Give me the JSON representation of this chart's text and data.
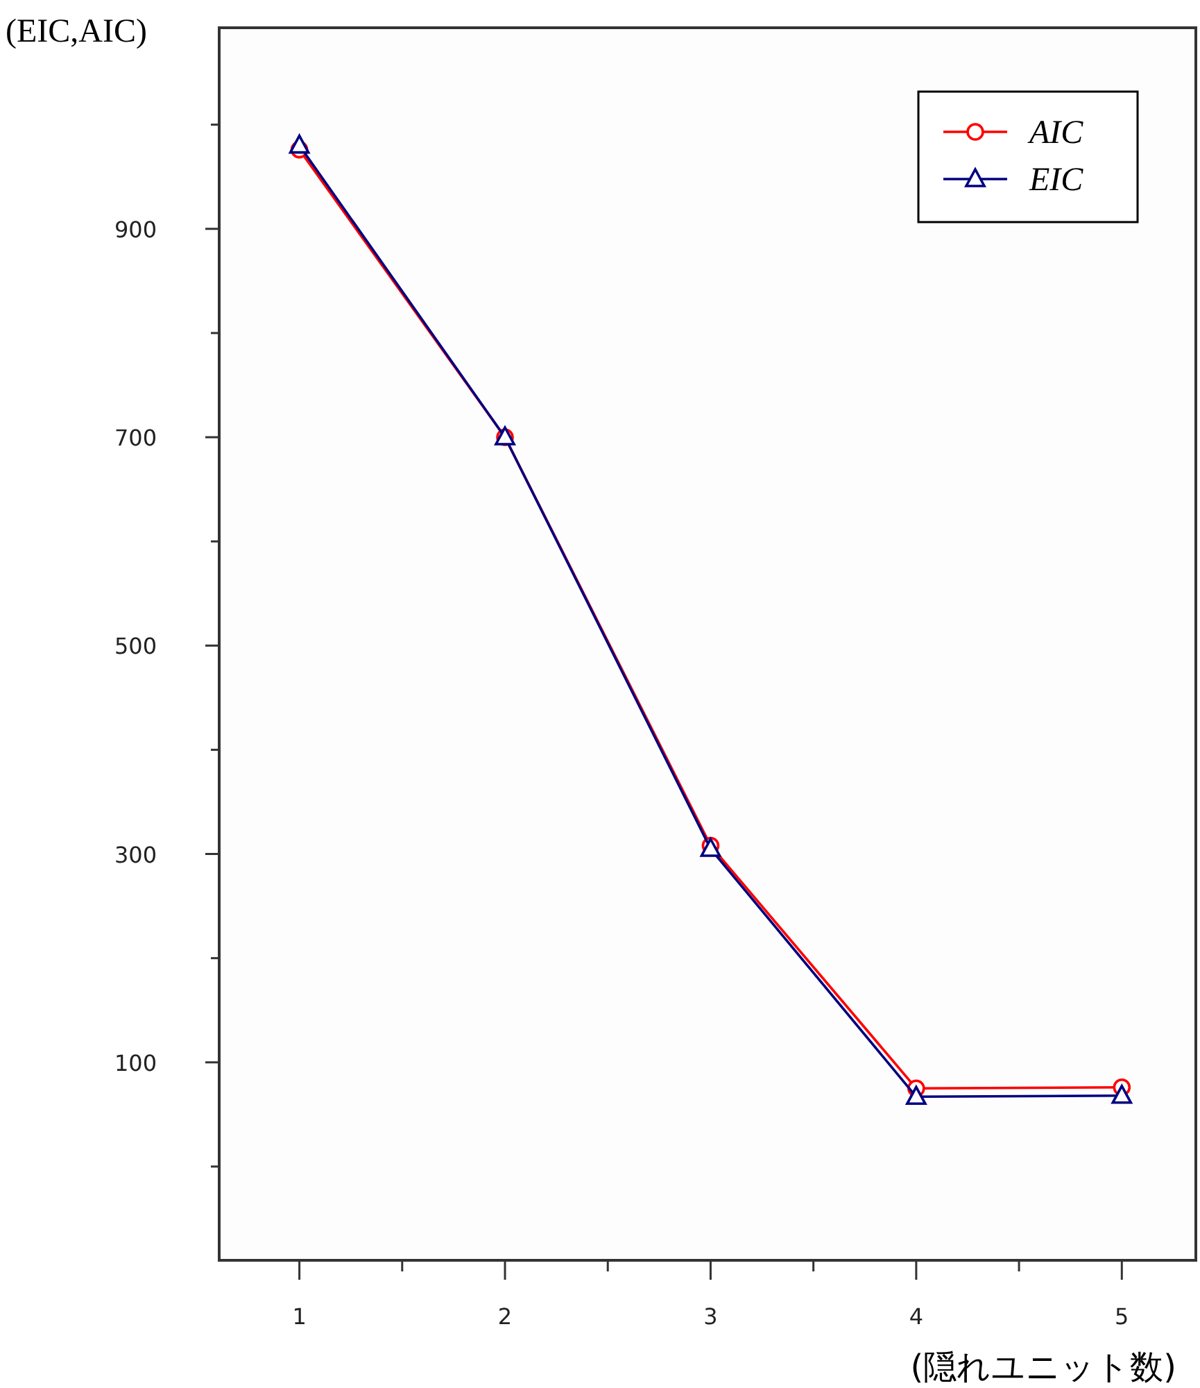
{
  "chart_data": {
    "type": "line",
    "xlabel": "(隠れユニット数)",
    "ylabel": "(EIC,AIC)",
    "x": [
      1,
      2,
      3,
      4,
      5
    ],
    "series": [
      {
        "name": "AIC",
        "color": "#ff0000",
        "marker": "circle",
        "values": [
          976,
          700,
          308,
          75,
          76
        ]
      },
      {
        "name": "EIC",
        "color": "#000080",
        "marker": "triangle",
        "values": [
          980,
          700,
          305,
          67,
          68
        ]
      }
    ],
    "xlim": [
      0.61,
      5.36
    ],
    "xticks": [
      1,
      {
        "value": 1.5,
        "label": null
      },
      2,
      {
        "value": 2.5,
        "label": null
      },
      3,
      {
        "value": 3.5,
        "label": null
      },
      4,
      {
        "value": 4.5,
        "label": null
      },
      5
    ],
    "ylim": [
      -90,
      1093
    ],
    "yticks": [
      {
        "value": 0,
        "label": null
      },
      100,
      {
        "value": 200,
        "label": null
      },
      300,
      {
        "value": 400,
        "label": null
      },
      500,
      {
        "value": 600,
        "label": null
      },
      700,
      {
        "value": 800,
        "label": null
      },
      900,
      {
        "value": 1000,
        "label": null
      }
    ],
    "legend": "top right",
    "grid": false,
    "line_style": "solid"
  }
}
